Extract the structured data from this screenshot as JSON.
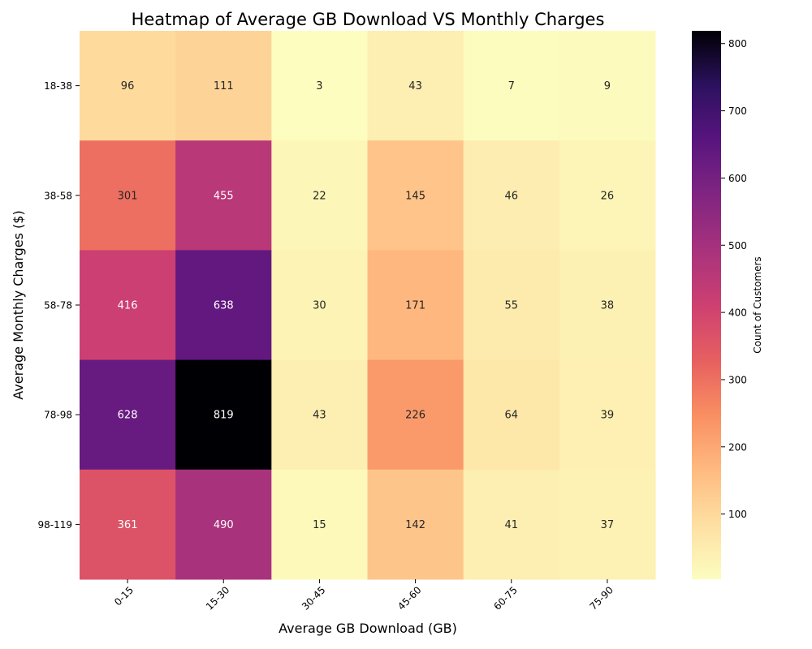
{
  "chart_data": {
    "type": "heatmap",
    "title": "Heatmap of Average GB Download VS Monthly Charges",
    "xlabel": "Average GB Download (GB)",
    "ylabel": "Average Monthly Charges ($)",
    "x_categories": [
      "0-15",
      "15-30",
      "30-45",
      "45-60",
      "60-75",
      "75-90"
    ],
    "y_categories": [
      "18-38",
      "38-58",
      "58-78",
      "78-98",
      "98-119"
    ],
    "values": [
      [
        96,
        111,
        3,
        43,
        7,
        9
      ],
      [
        301,
        455,
        22,
        145,
        46,
        26
      ],
      [
        416,
        638,
        30,
        171,
        55,
        38
      ],
      [
        628,
        819,
        43,
        226,
        64,
        39
      ],
      [
        361,
        490,
        15,
        142,
        41,
        37
      ]
    ],
    "colormap": "magma_r",
    "colorbar": {
      "label": "Count of Customers",
      "range": [
        3,
        819
      ],
      "ticks": [
        100,
        200,
        300,
        400,
        500,
        600,
        700,
        800
      ]
    },
    "annotations": true
  }
}
